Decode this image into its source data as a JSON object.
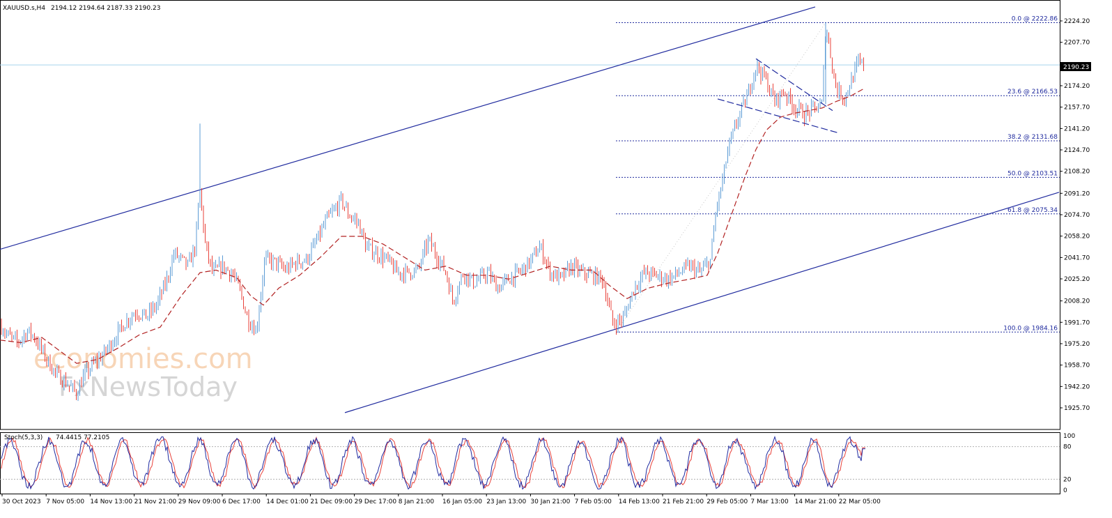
{
  "header": {
    "symbol": "XAUUSD.s,H4",
    "ohlc": "2194.12 2194.64 2187.33 2190.23"
  },
  "indicator": {
    "name": "Stoch(5,3,3)",
    "values": "74.4415 77.2105",
    "levels": [
      20,
      80
    ],
    "scale": [
      0,
      20,
      80,
      100
    ]
  },
  "watermark": {
    "line1": "economies.com",
    "line2": "FxNewsToday"
  },
  "colors": {
    "bull_candle": "#5b9bd5",
    "bear_candle": "#e8413a",
    "moving_average": "#b22222",
    "channel_line": "#1f2a9e",
    "fib_line": "#1f2a9e",
    "price_line": "#a8d4ec",
    "stoch_main": "#1f2aa0",
    "stoch_signal": "#e8413a"
  },
  "chart_data": {
    "type": "candlestick",
    "ylim": [
      1920,
      2235
    ],
    "y_ticks": [
      "2224.20",
      "2207.70",
      "2190.70",
      "2174.20",
      "2157.70",
      "2141.20",
      "2124.70",
      "2108.20",
      "2091.20",
      "2074.70",
      "2058.20",
      "2041.70",
      "2025.20",
      "2008.20",
      "1991.70",
      "1975.20",
      "1958.70",
      "1942.20",
      "1925.70"
    ],
    "x_ticks": [
      "30 Oct 2023",
      "7 Nov 05:00",
      "14 Nov 13:00",
      "21 Nov 21:00",
      "29 Nov 09:00",
      "6 Dec 17:00",
      "14 Dec 01:00",
      "21 Dec 09:00",
      "29 Dec 17:00",
      "8 Jan 21:00",
      "16 Jan 05:00",
      "23 Jan 13:00",
      "30 Jan 21:00",
      "7 Feb 05:00",
      "14 Feb 13:00",
      "21 Feb 21:00",
      "29 Feb 05:00",
      "7 Mar 13:00",
      "14 Mar 21:00",
      "22 Mar 05:00"
    ],
    "current_price": "2190.23",
    "price_path": [
      [
        0,
        1990
      ],
      [
        10,
        1982
      ],
      [
        25,
        1976
      ],
      [
        40,
        1985
      ],
      [
        50,
        1980
      ],
      [
        65,
        1965
      ],
      [
        80,
        1952
      ],
      [
        95,
        1945
      ],
      [
        110,
        1937
      ],
      [
        120,
        1950
      ],
      [
        135,
        1960
      ],
      [
        150,
        1968
      ],
      [
        165,
        1980
      ],
      [
        180,
        1992
      ],
      [
        195,
        2000
      ],
      [
        210,
        1996
      ],
      [
        225,
        2005
      ],
      [
        240,
        2025
      ],
      [
        250,
        2045
      ],
      [
        260,
        2040
      ],
      [
        270,
        2035
      ],
      [
        280,
        2050
      ],
      [
        287,
        2093
      ],
      [
        295,
        2050
      ],
      [
        305,
        2030
      ],
      [
        320,
        2035
      ],
      [
        335,
        2028
      ],
      [
        345,
        2015
      ],
      [
        355,
        1995
      ],
      [
        368,
        1985
      ],
      [
        380,
        2040
      ],
      [
        395,
        2038
      ],
      [
        410,
        2032
      ],
      [
        425,
        2038
      ],
      [
        440,
        2040
      ],
      [
        455,
        2055
      ],
      [
        470,
        2072
      ],
      [
        480,
        2078
      ],
      [
        490,
        2086
      ],
      [
        500,
        2075
      ],
      [
        515,
        2068
      ],
      [
        525,
        2050
      ],
      [
        540,
        2045
      ],
      [
        555,
        2040
      ],
      [
        570,
        2030
      ],
      [
        585,
        2030
      ],
      [
        600,
        2032
      ],
      [
        615,
        2055
      ],
      [
        630,
        2040
      ],
      [
        640,
        2030
      ],
      [
        650,
        2008
      ],
      [
        665,
        2030
      ],
      [
        680,
        2022
      ],
      [
        700,
        2030
      ],
      [
        715,
        2018
      ],
      [
        730,
        2025
      ],
      [
        745,
        2030
      ],
      [
        760,
        2038
      ],
      [
        775,
        2050
      ],
      [
        790,
        2030
      ],
      [
        805,
        2025
      ],
      [
        820,
        2035
      ],
      [
        835,
        2030
      ],
      [
        850,
        2028
      ],
      [
        865,
        2025
      ],
      [
        880,
        1990
      ],
      [
        895,
        1995
      ],
      [
        910,
        2018
      ],
      [
        925,
        2030
      ],
      [
        940,
        2028
      ],
      [
        960,
        2025
      ],
      [
        975,
        2030
      ],
      [
        990,
        2035
      ],
      [
        1005,
        2030
      ],
      [
        1020,
        2040
      ],
      [
        1028,
        2080
      ],
      [
        1035,
        2095
      ],
      [
        1045,
        2125
      ],
      [
        1060,
        2150
      ],
      [
        1072,
        2165
      ],
      [
        1085,
        2190
      ],
      [
        1098,
        2180
      ],
      [
        1112,
        2162
      ],
      [
        1125,
        2170
      ],
      [
        1140,
        2158
      ],
      [
        1155,
        2152
      ],
      [
        1170,
        2157
      ],
      [
        1180,
        2160
      ],
      [
        1185,
        2222
      ],
      [
        1190,
        2205
      ],
      [
        1200,
        2172
      ],
      [
        1212,
        2165
      ],
      [
        1222,
        2178
      ],
      [
        1232,
        2192
      ],
      [
        1240,
        2190
      ]
    ],
    "moving_average_path": [
      [
        0,
        1978
      ],
      [
        30,
        1976
      ],
      [
        60,
        1980
      ],
      [
        90,
        1968
      ],
      [
        110,
        1960
      ],
      [
        140,
        1963
      ],
      [
        170,
        1972
      ],
      [
        200,
        1982
      ],
      [
        230,
        1988
      ],
      [
        260,
        2012
      ],
      [
        287,
        2030
      ],
      [
        310,
        2032
      ],
      [
        340,
        2026
      ],
      [
        360,
        2012
      ],
      [
        378,
        2005
      ],
      [
        400,
        2018
      ],
      [
        430,
        2028
      ],
      [
        460,
        2042
      ],
      [
        490,
        2058
      ],
      [
        520,
        2058
      ],
      [
        550,
        2052
      ],
      [
        580,
        2042
      ],
      [
        610,
        2032
      ],
      [
        640,
        2035
      ],
      [
        670,
        2028
      ],
      [
        700,
        2028
      ],
      [
        730,
        2025
      ],
      [
        760,
        2030
      ],
      [
        790,
        2035
      ],
      [
        820,
        2032
      ],
      [
        850,
        2032
      ],
      [
        875,
        2020
      ],
      [
        900,
        2010
      ],
      [
        930,
        2018
      ],
      [
        960,
        2022
      ],
      [
        990,
        2025
      ],
      [
        1015,
        2028
      ],
      [
        1030,
        2045
      ],
      [
        1050,
        2075
      ],
      [
        1070,
        2105
      ],
      [
        1085,
        2125
      ],
      [
        1100,
        2140
      ],
      [
        1120,
        2150
      ],
      [
        1140,
        2153
      ],
      [
        1160,
        2155
      ],
      [
        1180,
        2157
      ],
      [
        1200,
        2162
      ],
      [
        1220,
        2166
      ],
      [
        1240,
        2172
      ]
    ],
    "fibonacci_levels": [
      {
        "label": "0.0 @ 2222.86",
        "price": 2222.86
      },
      {
        "label": "23.6 @ 2166.53",
        "price": 2166.53
      },
      {
        "label": "38.2 @ 2131.68",
        "price": 2131.68
      },
      {
        "label": "50.0 @ 2103.51",
        "price": 2103.51
      },
      {
        "label": "61.8 @ 2075.34",
        "price": 2075.34
      },
      {
        "label": "100.0 @ 1984.16",
        "price": 1984.16
      }
    ],
    "channel": {
      "upper": [
        [
          0,
          2048
        ],
        [
          1170,
          2235
        ]
      ],
      "lower": [
        [
          495,
          1922
        ],
        [
          1520,
          2092
        ]
      ]
    },
    "triangle_lines": [
      {
        "from": [
          1085,
          2195
        ],
        "to": [
          1195,
          2155
        ],
        "style": "dashed"
      },
      {
        "from": [
          1030,
          2164
        ],
        "to": [
          1202,
          2138
        ],
        "style": "dashed"
      }
    ]
  }
}
